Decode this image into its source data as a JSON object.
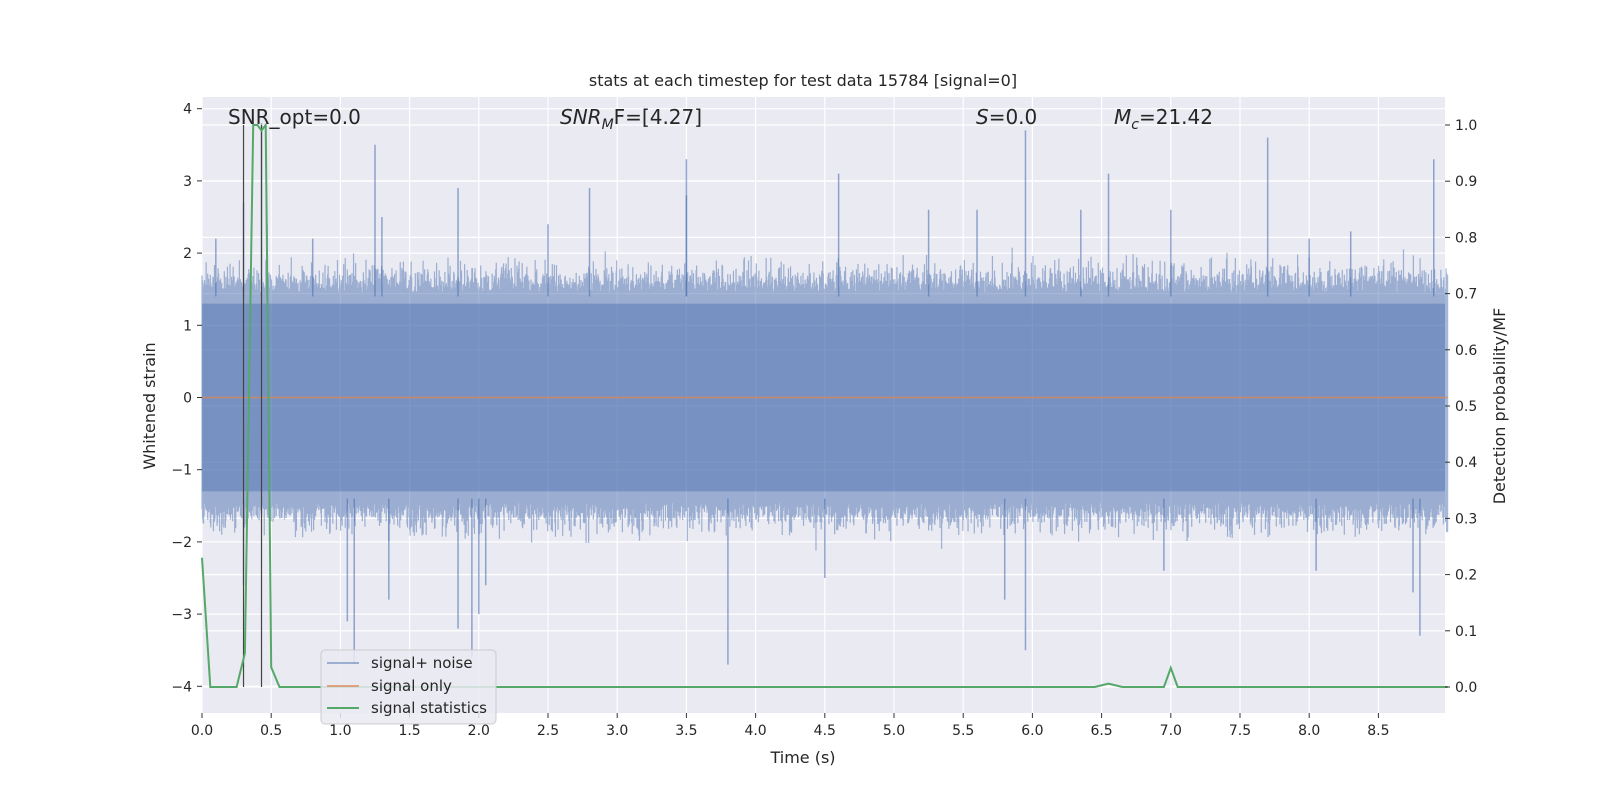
{
  "chart_data": {
    "type": "line",
    "title": "stats at each timestep for test data 15784 [signal=0]",
    "xlabel": "Time (s)",
    "ylabel_left": "Whitened strain",
    "ylabel_right": "Detection probability/MF",
    "xlim": [
      0.0,
      9.0
    ],
    "ylim_left": [
      -4.4,
      4.2
    ],
    "ylim_right": [
      -0.048,
      1.03
    ],
    "x_ticks": [
      "0.0",
      "0.5",
      "1.0",
      "1.5",
      "2.0",
      "2.5",
      "3.0",
      "3.5",
      "4.0",
      "4.5",
      "5.0",
      "5.5",
      "6.0",
      "6.5",
      "7.0",
      "7.5",
      "8.0",
      "8.5"
    ],
    "y_ticks_left": [
      "4",
      "3",
      "2",
      "1",
      "0",
      "−1",
      "−2",
      "−3",
      "−4"
    ],
    "y_ticks_right": [
      "1.0",
      "0.9",
      "0.8",
      "0.7",
      "0.6",
      "0.5",
      "0.4",
      "0.3",
      "0.2",
      "0.1",
      "0.0"
    ],
    "annotations": {
      "snr_opt": "SNR_opt=0.0",
      "snr_mf_main": "SNR",
      "snr_mf_sub": "M",
      "snr_mf_rest": "F=[4.27]",
      "s_main": "S",
      "s_rest": "=0.0",
      "mc_main": "M",
      "mc_sub": "c",
      "mc_rest": "=21.42"
    },
    "vlines_s": [
      0.3,
      0.43
    ],
    "series": [
      {
        "name": "signal+ noise",
        "color": "#4c72b0",
        "description": "dense whitened noise, typical envelope roughly -1.5 to 1.6, spikes",
        "upper_spikes": [
          [
            0.1,
            2.2
          ],
          [
            0.3,
            2.7
          ],
          [
            0.43,
            3.8
          ],
          [
            0.47,
            2.4
          ],
          [
            0.8,
            2.2
          ],
          [
            1.25,
            3.5
          ],
          [
            1.3,
            2.5
          ],
          [
            1.85,
            2.9
          ],
          [
            2.5,
            2.4
          ],
          [
            2.8,
            2.9
          ],
          [
            3.5,
            2.8
          ],
          [
            3.5,
            3.3
          ],
          [
            4.6,
            3.1
          ],
          [
            5.25,
            2.6
          ],
          [
            5.6,
            2.6
          ],
          [
            5.95,
            3.7
          ],
          [
            6.35,
            2.6
          ],
          [
            6.55,
            3.1
          ],
          [
            7.0,
            2.6
          ],
          [
            7.7,
            3.6
          ],
          [
            8.0,
            2.2
          ],
          [
            8.3,
            2.3
          ],
          [
            8.9,
            3.3
          ]
        ],
        "lower_spikes": [
          [
            0.3,
            -2.6
          ],
          [
            1.05,
            -3.1
          ],
          [
            1.1,
            -3.7
          ],
          [
            1.35,
            -2.8
          ],
          [
            1.85,
            -3.2
          ],
          [
            1.95,
            -3.6
          ],
          [
            2.0,
            -3.0
          ],
          [
            2.05,
            -2.6
          ],
          [
            3.8,
            -3.7
          ],
          [
            4.5,
            -2.5
          ],
          [
            5.8,
            -2.8
          ],
          [
            5.95,
            -3.5
          ],
          [
            6.95,
            -2.4
          ],
          [
            8.05,
            -2.4
          ],
          [
            8.75,
            -2.7
          ],
          [
            8.8,
            -3.3
          ]
        ]
      },
      {
        "name": "signal only",
        "color": "#dd8452",
        "x": [
          0.0,
          9.0
        ],
        "y": [
          0.0,
          0.0
        ]
      },
      {
        "name": "signal statistics",
        "color": "#55a868",
        "axis": "right",
        "x": [
          0.0,
          0.06,
          0.12,
          0.25,
          0.31,
          0.37,
          0.4,
          0.43,
          0.46,
          0.5,
          0.56,
          1.0,
          3.2,
          5.5,
          6.45,
          6.55,
          6.65,
          6.95,
          7.0,
          7.05,
          7.5,
          9.0
        ],
        "y": [
          0.23,
          0.0,
          0.0,
          0.0,
          0.06,
          1.0,
          1.0,
          0.99,
          1.0,
          0.035,
          0.0,
          0.0,
          0.0,
          0.0,
          0.0,
          0.006,
          0.0,
          0.0,
          0.034,
          0.0,
          0.0,
          0.0
        ]
      }
    ],
    "legend": {
      "position": "lower-left",
      "entries": [
        "signal+ noise",
        "signal only",
        "signal statistics"
      ]
    },
    "grid": true,
    "colors": {
      "plot_bg": "#eaeaf2",
      "grid": "#ffffff",
      "noise": "#4c72b0",
      "signal": "#dd8452",
      "stats": "#55a868"
    }
  }
}
